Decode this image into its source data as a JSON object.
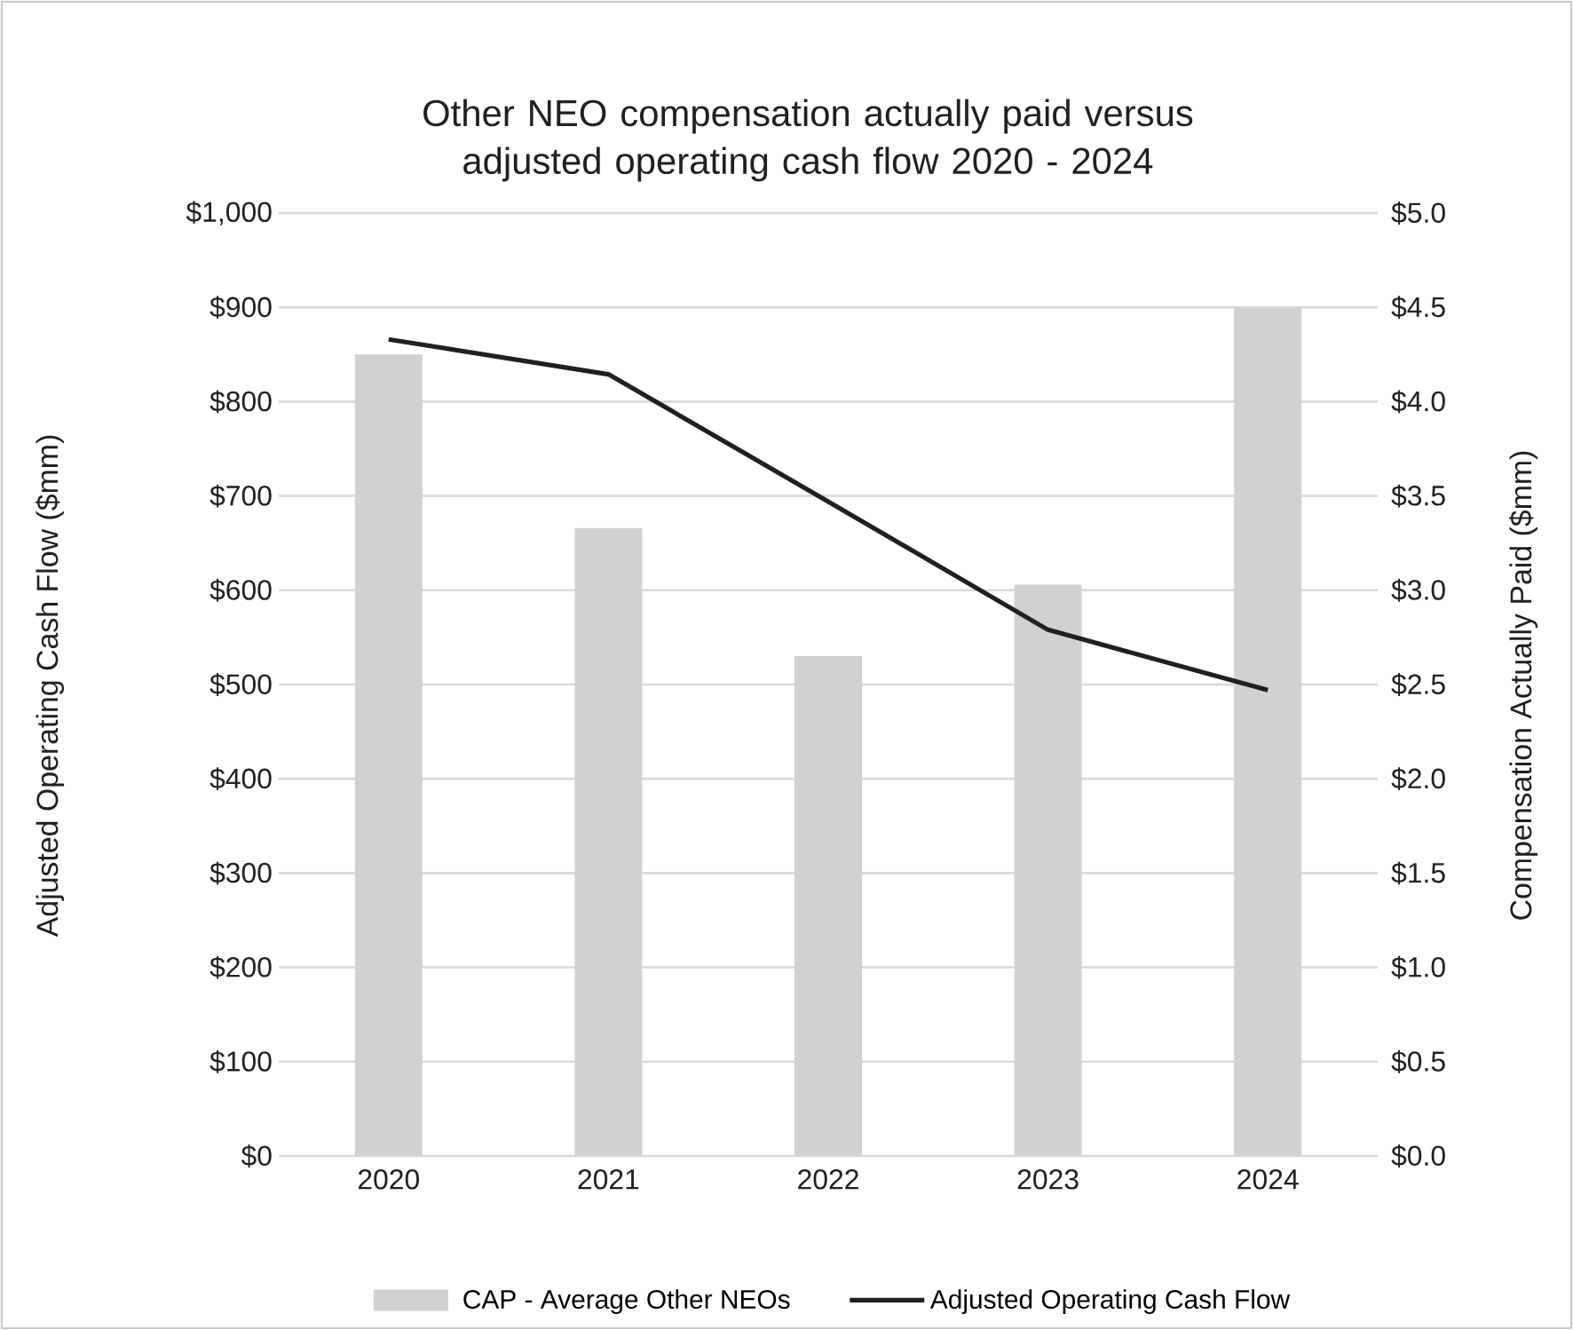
{
  "chart_data": {
    "type": "bar",
    "title": "Other NEO compensation actually paid versus adjusted operating cash flow 2020 - 2024",
    "categories": [
      "2020",
      "2021",
      "2022",
      "2023",
      "2024"
    ],
    "series": [
      {
        "name": "CAP - Average Other NEOs",
        "axis": "y2",
        "color": "#d0d1d3",
        "values": [
          4.25,
          3.33,
          2.65,
          3.03,
          4.5
        ]
      },
      {
        "name": "Adjusted Operating Cash Flow",
        "type": "line",
        "axis": "y",
        "color": "#231f20",
        "values": [
          866,
          829,
          694,
          558,
          494
        ]
      }
    ],
    "ylabel": "Adjusted Operating Cash Flow ($mm)",
    "y2label": "Compensation Actually Paid ($mm)",
    "ylim": [
      0,
      1000
    ],
    "yticks": [
      {
        "value": 0,
        "label": "$0"
      },
      {
        "value": 100,
        "label": "$100"
      },
      {
        "value": 200,
        "label": "$200"
      },
      {
        "value": 300,
        "label": "$300"
      },
      {
        "value": 400,
        "label": "$400"
      },
      {
        "value": 500,
        "label": "$500"
      },
      {
        "value": 600,
        "label": "$600"
      },
      {
        "value": 700,
        "label": "$700"
      },
      {
        "value": 800,
        "label": "$800"
      },
      {
        "value": 900,
        "label": "$900"
      },
      {
        "value": 1000,
        "label": "$1,000"
      }
    ],
    "y2lim": [
      0,
      5
    ],
    "y2ticks": [
      {
        "value": 0,
        "label": "$0.0"
      },
      {
        "value": 0.5,
        "label": "$0.5"
      },
      {
        "value": 1,
        "label": "$1.0"
      },
      {
        "value": 1.5,
        "label": "$1.5"
      },
      {
        "value": 2,
        "label": "$2.0"
      },
      {
        "value": 2.5,
        "label": "$2.5"
      },
      {
        "value": 3,
        "label": "$3.0"
      },
      {
        "value": 3.5,
        "label": "$3.5"
      },
      {
        "value": 4,
        "label": "$4.0"
      },
      {
        "value": 4.5,
        "label": "$4.5"
      },
      {
        "value": 5,
        "label": "$5.0"
      }
    ],
    "grid": "y",
    "legend": "bottom",
    "line_style": "solid",
    "marker": "none"
  }
}
